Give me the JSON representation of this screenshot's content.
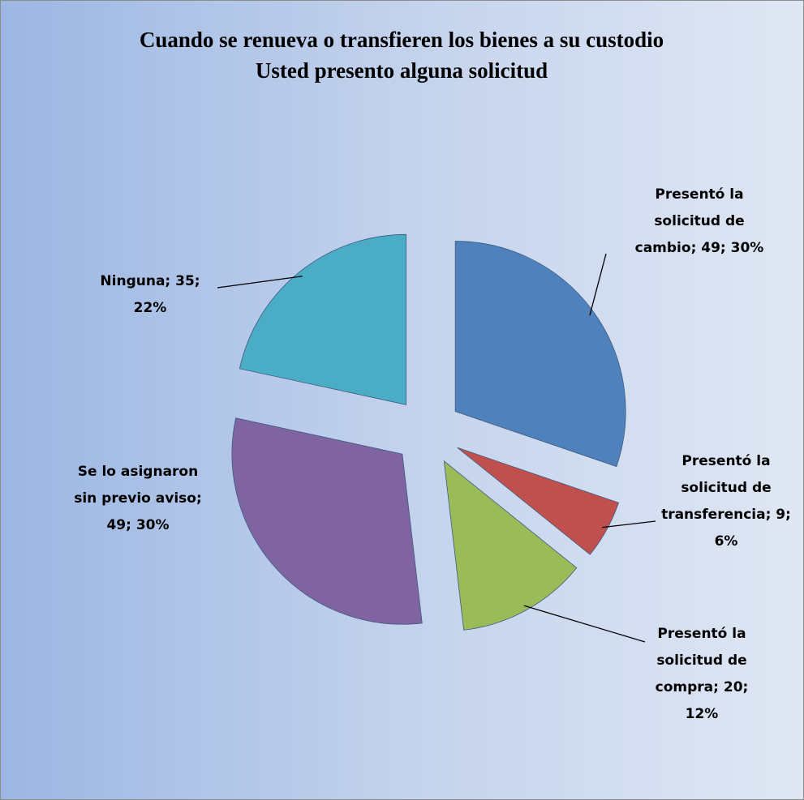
{
  "chart_data": {
    "type": "pie",
    "title": [
      "Cuando se renueva o transfieren  los bienes a su custodio",
      "Usted  presento alguna solicitud"
    ],
    "values": [
      49,
      9,
      20,
      49,
      35
    ],
    "labels": [
      [
        "Presentó la",
        "solicitud de",
        "cambio; 49; 30%"
      ],
      [
        "Presentó la",
        "solicitud de",
        "transferencia; 9;",
        "6%"
      ],
      [
        "Presentó la",
        "solicitud de",
        "compra; 20;",
        "12%"
      ],
      [
        "Se lo asignaron",
        "sin previo aviso;",
        "49; 30%"
      ],
      [
        "Ninguna; 35;",
        "22%"
      ]
    ],
    "colors": [
      "#4f81bd",
      "#c0504d",
      "#9bbb59",
      "#8064a2",
      "#4bacc6"
    ]
  }
}
